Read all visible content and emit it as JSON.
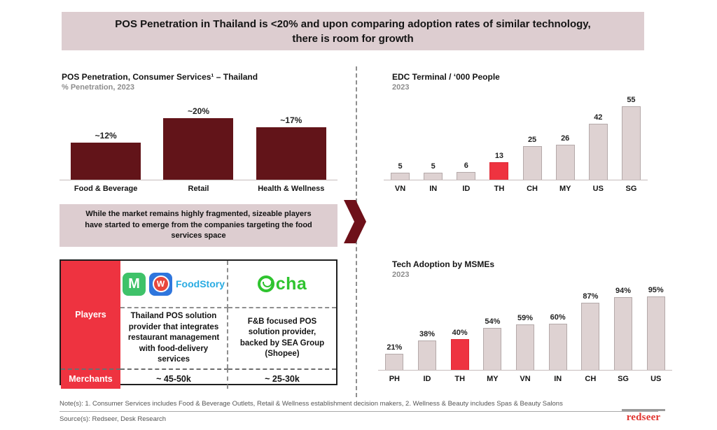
{
  "banner": {
    "title": "POS Penetration in Thailand is <20% and upon comparing adoption rates of similar technology, there is room for growth"
  },
  "colors": {
    "banner_bg": "#ddcdd0",
    "maroon_bar": "#621419",
    "highlight_red": "#ee3340",
    "light_bar": "#ded2d2",
    "subtitle_gray": "#8d8d8d"
  },
  "chart_data": [
    {
      "id": "pos_penetration",
      "type": "bar",
      "title": "POS Penetration, Consumer Services¹ – Thailand",
      "subtitle": "% Penetration, 2023",
      "categories": [
        "Food & Beverage",
        "Retail",
        "Health & Wellness"
      ],
      "values": [
        12,
        20,
        17
      ],
      "labels": [
        "~12%",
        "~20%",
        "~17%"
      ],
      "ylim": [
        0,
        25
      ],
      "grid": false,
      "legend": "none"
    },
    {
      "id": "edc_terminal",
      "type": "bar",
      "title": "EDC Terminal / ‘000 People",
      "subtitle": "2023",
      "categories": [
        "VN",
        "IN",
        "ID",
        "TH",
        "CH",
        "MY",
        "US",
        "SG"
      ],
      "values": [
        5,
        5,
        6,
        13,
        25,
        26,
        42,
        55
      ],
      "labels": [
        "5",
        "5",
        "6",
        "13",
        "25",
        "26",
        "42",
        "55"
      ],
      "highlight_index": 3,
      "ylim": [
        0,
        60
      ],
      "grid": false,
      "legend": "none"
    },
    {
      "id": "tech_adoption",
      "type": "bar",
      "title": "Tech Adoption by MSMEs",
      "subtitle": "2023",
      "categories": [
        "PH",
        "ID",
        "TH",
        "MY",
        "VN",
        "IN",
        "CH",
        "SG",
        "US"
      ],
      "values": [
        21,
        38,
        40,
        54,
        59,
        60,
        87,
        94,
        95
      ],
      "labels": [
        "21%",
        "38%",
        "40%",
        "54%",
        "59%",
        "60%",
        "87%",
        "94%",
        "95%"
      ],
      "highlight_index": 2,
      "ylim": [
        0,
        100
      ],
      "grid": false,
      "legend": "none"
    }
  ],
  "callout": {
    "text": "While the market remains highly fragmented, sizeable players have started to emerge from the companies targeting the  food services space"
  },
  "players_table": {
    "row_labels": {
      "players": "Players",
      "merchants": "Merchants"
    },
    "columns": [
      {
        "logo_m_badge": "M",
        "logo_w_badge": "W",
        "logo_text": "FoodStory",
        "description": "Thailand POS solution provider that integrates restaurant management with food-delivery services",
        "merchants": "~ 45-50k"
      },
      {
        "logo_name": "Ocha",
        "logo_text_display": "cha",
        "description": "F&B focused POS solution provider, backed by SEA Group (Shopee)",
        "merchants": "~ 25-30k"
      }
    ]
  },
  "footer": {
    "note": "Note(s): 1. Consumer Services includes Food & Beverage Outlets, Retail & Wellness establishment decision makers, 2. Wellness & Beauty includes Spas & Beauty Salons",
    "source": "Source(s): Redseer, Desk Research",
    "logo": "redseer"
  }
}
